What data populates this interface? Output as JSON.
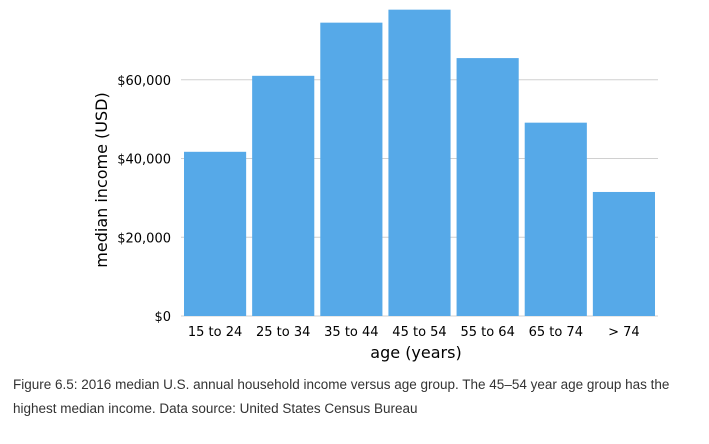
{
  "chart_data": {
    "type": "bar",
    "categories": [
      "15 to 24",
      "25 to 34",
      "35 to 44",
      "45 to 54",
      "55 to 64",
      "65 to 74",
      "> 74"
    ],
    "values": [
      41700,
      61000,
      74500,
      77800,
      65500,
      49100,
      31500
    ],
    "xlabel": "age (years)",
    "ylabel": "median income (USD)",
    "yticks": [
      0,
      20000,
      40000,
      60000
    ],
    "ytick_labels": [
      "$0",
      "$20,000",
      "$40,000",
      "$60,000"
    ],
    "ylim": [
      0,
      80000
    ],
    "grid": "horizontal",
    "bar_color": "#56A9E8",
    "grid_color": "#D0D0D0"
  },
  "caption": "Figure 6.5: 2016 median U.S. annual household income versus age group. The 45–54 year age group has the highest median income. Data source: United States Census Bureau"
}
